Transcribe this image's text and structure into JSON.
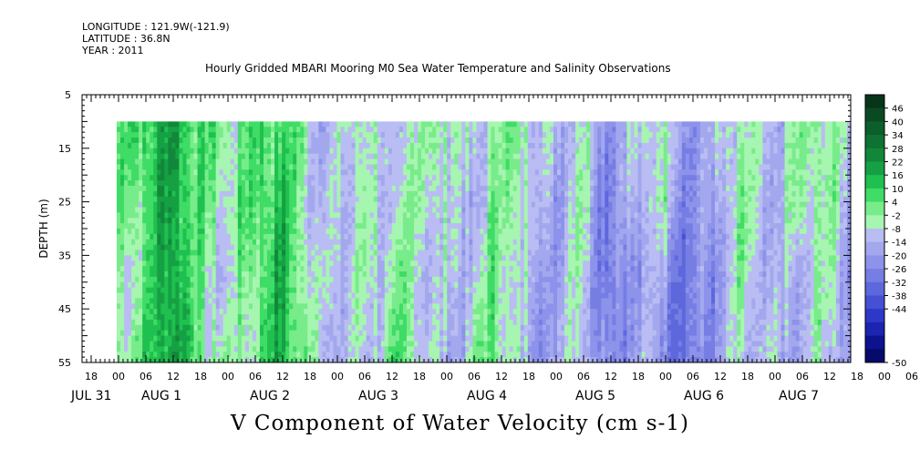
{
  "header": {
    "longitude": "LONGITUDE : 121.9W(-121.9)",
    "latitude": "LATITUDE : 36.8N",
    "year": "YEAR : 2011",
    "title": "Hourly Gridded MBARI Mooring M0 Sea Water Temperature and Salinity Observations"
  },
  "chart_data": {
    "type": "heatmap",
    "title": "V Component of Water Velocity (cm s-1)",
    "ylabel": "DEPTH (m)",
    "ylim": [
      55,
      5
    ],
    "y_ticks": [
      55,
      45,
      35,
      25,
      15,
      5
    ],
    "data_depth_range": [
      10,
      55
    ],
    "x_hour_labels": [
      "18",
      "00",
      "06",
      "12",
      "18",
      "00",
      "06",
      "12",
      "18",
      "00",
      "06",
      "12",
      "18",
      "00",
      "06",
      "12",
      "18",
      "00",
      "06",
      "12",
      "18",
      "00",
      "06",
      "12",
      "18",
      "00",
      "06",
      "12",
      "18",
      "00",
      "06",
      "12"
    ],
    "x_day_labels": [
      "JUL 31",
      "AUG 1",
      "AUG 2",
      "AUG 3",
      "AUG 4",
      "AUG 5",
      "AUG 6",
      "AUG 7"
    ],
    "colorbar": {
      "labels": [
        "46",
        "40",
        "34",
        "28",
        "22",
        "16",
        "10",
        "4",
        "-2",
        "-8",
        "-14",
        "-20",
        "-26",
        "-32",
        "-38",
        "-44",
        "-50"
      ],
      "colors": [
        "#08351a",
        "#0a4a22",
        "#0c5e2a",
        "#0f7232",
        "#12873a",
        "#16a044",
        "#1fc04f",
        "#3fdc66",
        "#78ec8a",
        "#a6f5b0",
        "#b9bdf3",
        "#a3a8ee",
        "#8d93ea",
        "#767ee4",
        "#5e68dd",
        "#4650d4",
        "#2e38c8",
        "#1c24b0",
        "#0d128f",
        "#060a6a"
      ]
    },
    "v_profiles": [
      {
        "time": "JUL 31 18:00",
        "v": [
          0,
          0,
          0,
          0
        ]
      },
      {
        "time": "AUG 1 00:00",
        "v": [
          12,
          9,
          4,
          8
        ]
      },
      {
        "time": "AUG 1 06:00",
        "v": [
          16,
          13,
          9,
          12
        ]
      },
      {
        "time": "AUG 1 12:00",
        "v": [
          26,
          26,
          28,
          30
        ]
      },
      {
        "time": "AUG 1 18:00",
        "v": [
          14,
          10,
          6,
          8
        ]
      },
      {
        "time": "AUG 2 00:00",
        "v": [
          6,
          3,
          -2,
          2
        ]
      },
      {
        "time": "AUG 2 06:00",
        "v": [
          12,
          14,
          10,
          8
        ]
      },
      {
        "time": "AUG 2 12:00",
        "v": [
          16,
          18,
          20,
          22
        ]
      },
      {
        "time": "AUG 2 18:00",
        "v": [
          4,
          2,
          4,
          6
        ]
      },
      {
        "time": "AUG 3 00:00",
        "v": [
          -6,
          -4,
          -2,
          -4
        ]
      },
      {
        "time": "AUG 3 06:00",
        "v": [
          6,
          4,
          2,
          -2
        ]
      },
      {
        "time": "AUG 3 12:00",
        "v": [
          -6,
          -4,
          2,
          6
        ]
      },
      {
        "time": "AUG 3 18:00",
        "v": [
          4,
          6,
          4,
          8
        ]
      },
      {
        "time": "AUG 4 00:00",
        "v": [
          8,
          2,
          -4,
          -6
        ]
      },
      {
        "time": "AUG 4 06:00",
        "v": [
          -4,
          -6,
          -2,
          2
        ]
      },
      {
        "time": "AUG 4 12:00",
        "v": [
          6,
          8,
          10,
          12
        ]
      },
      {
        "time": "AUG 4 18:00",
        "v": [
          8,
          4,
          -2,
          -8
        ]
      },
      {
        "time": "AUG 5 00:00",
        "v": [
          -4,
          -8,
          -10,
          -8
        ]
      },
      {
        "time": "AUG 5 06:00",
        "v": [
          4,
          6,
          6,
          4
        ]
      },
      {
        "time": "AUG 5 12:00",
        "v": [
          -8,
          -12,
          -16,
          -14
        ]
      },
      {
        "time": "AUG 5 18:00",
        "v": [
          -4,
          -6,
          -10,
          -8
        ]
      },
      {
        "time": "AUG 6 00:00",
        "v": [
          6,
          4,
          -6,
          -8
        ]
      },
      {
        "time": "AUG 6 06:00",
        "v": [
          -8,
          -12,
          -18,
          -20
        ]
      },
      {
        "time": "AUG 6 12:00",
        "v": [
          -6,
          -10,
          -12,
          -10
        ]
      },
      {
        "time": "AUG 6 18:00",
        "v": [
          4,
          6,
          2,
          -2
        ]
      },
      {
        "time": "AUG 7 00:00",
        "v": [
          -6,
          -8,
          -6,
          -4
        ]
      },
      {
        "time": "AUG 7 06:00",
        "v": [
          4,
          2,
          -6,
          -8
        ]
      },
      {
        "time": "AUG 7 12:00",
        "v": [
          8,
          6,
          4,
          2
        ]
      },
      {
        "time": "AUG 7 16:00",
        "v": [
          -2,
          -4,
          -6,
          -6
        ]
      }
    ],
    "v_profile_depths": [
      10,
      25,
      40,
      55
    ],
    "grid": false
  }
}
